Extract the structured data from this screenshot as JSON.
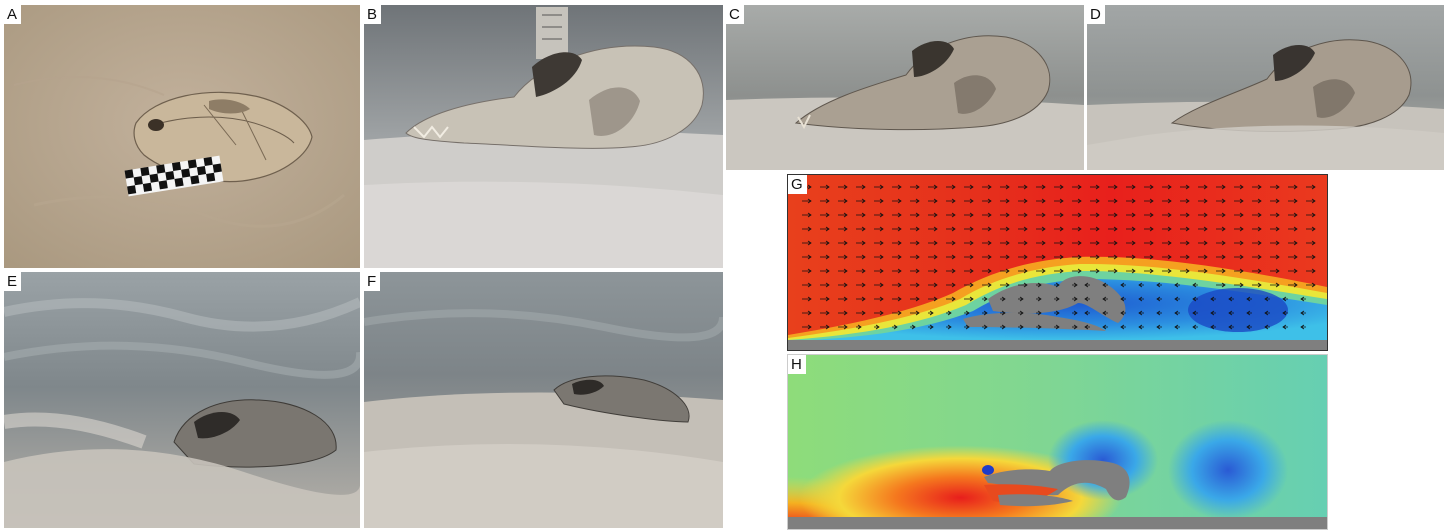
{
  "panels": {
    "A": {
      "label": "A",
      "kind": "photo",
      "icon": "skull-top-view-on-sand-with-scale-bar"
    },
    "B": {
      "label": "B",
      "kind": "photo",
      "icon": "skull-side-view-underwater-with-ruler"
    },
    "C": {
      "label": "C",
      "kind": "photo",
      "icon": "skull-partially-buried-in-sand"
    },
    "D": {
      "label": "D",
      "kind": "photo",
      "icon": "skull-more-buried-in-sand"
    },
    "E": {
      "label": "E",
      "kind": "photo",
      "icon": "skull-in-turbulent-sediment-flow"
    },
    "F": {
      "label": "F",
      "kind": "photo",
      "icon": "skull-nearly-buried-under-sand"
    },
    "G": {
      "label": "G",
      "kind": "simulation",
      "icon": "flow-velocity-field-with-arrows"
    },
    "H": {
      "label": "H",
      "kind": "simulation",
      "icon": "pressure-field-around-skull"
    }
  },
  "colors": {
    "sand": "#b9a894",
    "water": "#8a9098",
    "bone": "#c9bfae",
    "solid_gray": "#7f7f7f",
    "hot": "#e8241c",
    "cold": "#1f5fd0"
  }
}
